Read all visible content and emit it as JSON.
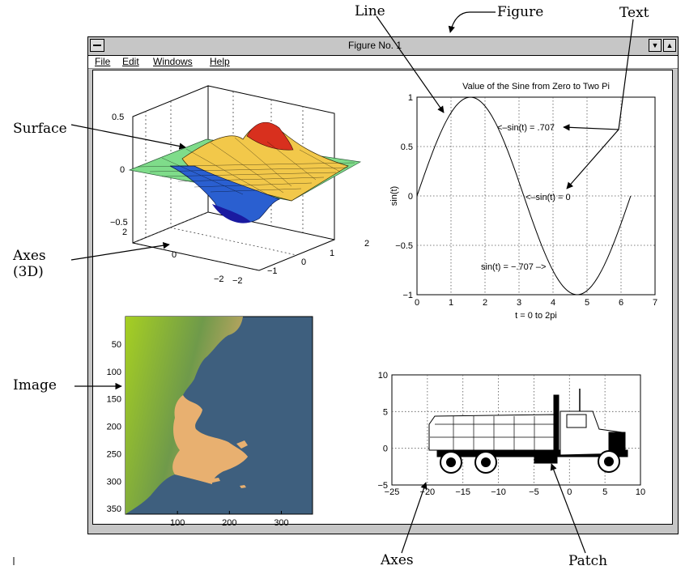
{
  "window": {
    "title": "Figure No. 1",
    "menu": [
      "File",
      "Edit",
      "Windows",
      "Help"
    ]
  },
  "annotations": {
    "line": "Line",
    "figure": "Figure",
    "text": "Text",
    "surface": "Surface",
    "axes3d_line1": "Axes",
    "axes3d_line2": "(3D)",
    "image": "Image",
    "axes": "Axes",
    "patch": "Patch"
  },
  "chart_data": [
    {
      "type": "surface",
      "zlim": [
        -0.5,
        0.5
      ],
      "z_ticks": [
        "0.5",
        "0",
        "−0.5"
      ],
      "x_ticks": [
        "−2",
        "−1",
        "0",
        "1",
        "2"
      ],
      "y_ticks": [
        "2",
        "0",
        "−2"
      ],
      "grid": true
    },
    {
      "type": "line",
      "title": "Value of the Sine from Zero to Two Pi",
      "xlabel": "t = 0 to 2pi",
      "ylabel": "sin(t)",
      "xlim": [
        0,
        7
      ],
      "ylim": [
        -1,
        1
      ],
      "x_ticks": [
        "0",
        "1",
        "2",
        "3",
        "4",
        "5",
        "6",
        "7"
      ],
      "y_ticks": [
        "1",
        "0.5",
        "0",
        "−0.5",
        "−1"
      ],
      "series": [
        {
          "function": "sin(t)",
          "t_range": [
            0,
            6.2832
          ]
        }
      ],
      "annotations": [
        "<–sin(t) = .707",
        "<–sin(t) = 0",
        "sin(t) = −.707 –>"
      ],
      "grid": true
    },
    {
      "type": "image",
      "x_ticks": [
        "100",
        "200",
        "300"
      ],
      "y_ticks": [
        "50",
        "100",
        "150",
        "200",
        "250",
        "300",
        "350"
      ],
      "xlim": [
        0,
        360
      ],
      "ylim": [
        0,
        360
      ],
      "colors": {
        "sea": "#3e5f7e",
        "land_high": "#8fbf2a",
        "land_low": "#e8b070"
      }
    },
    {
      "type": "patch",
      "xlim": [
        -25,
        10
      ],
      "ylim": [
        -5,
        10
      ],
      "x_ticks": [
        "−25",
        "−20",
        "−15",
        "−10",
        "−5",
        "0",
        "5",
        "10"
      ],
      "y_ticks": [
        "10",
        "5",
        "0",
        "−5"
      ],
      "grid": true
    }
  ]
}
